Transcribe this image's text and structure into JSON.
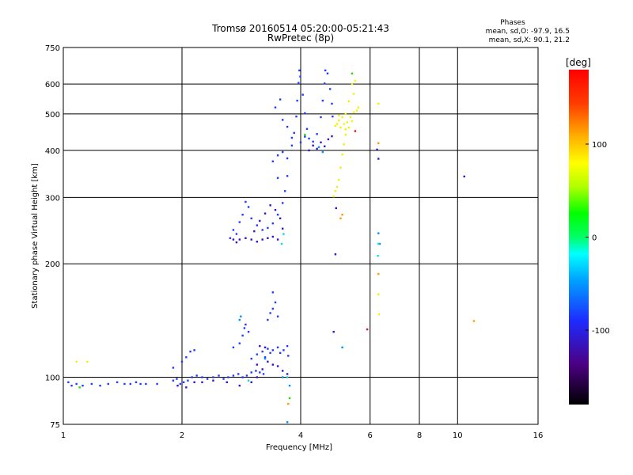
{
  "chart_data": {
    "type": "scatter",
    "title": "Tromsø 20160514 05:20:00-05:21:43",
    "subtitle": "RwPretec (8p)",
    "xlabel": "Frequency [MHz]",
    "ylabel": "Stationary phase Virtual Height [km]",
    "x_scale": "log",
    "y_scale": "log",
    "xlim": [
      1,
      16
    ],
    "ylim": [
      75,
      750
    ],
    "x_ticks": [
      1,
      2,
      4,
      6,
      8,
      10,
      16
    ],
    "x_tick_labels": [
      "1",
      "2",
      "4",
      "6",
      "8",
      "10",
      "16"
    ],
    "y_ticks": [
      75,
      100,
      200,
      300,
      400,
      500,
      600,
      750
    ],
    "y_tick_labels": [
      "75",
      "100",
      "200",
      "300",
      "400",
      "500",
      "600",
      "750"
    ],
    "grid": true,
    "stats": {
      "heading": "Phases",
      "line_o": "mean, sd,O:  -97.9,  16.5",
      "line_x": "mean, sd,X:   90.1,  21.2"
    },
    "colorbar": {
      "label": "[deg]",
      "range": [
        -180,
        180
      ],
      "ticks": [
        100,
        0,
        -100
      ],
      "tick_labels": [
        "100",
        "0",
        "-100"
      ]
    },
    "series": [
      {
        "phase": -100,
        "points": [
          [
            1.03,
            97
          ],
          [
            1.05,
            95
          ],
          [
            1.08,
            96
          ],
          [
            1.12,
            95
          ],
          [
            1.18,
            96
          ],
          [
            1.24,
            95
          ],
          [
            1.3,
            96
          ],
          [
            1.37,
            97
          ],
          [
            1.43,
            96
          ],
          [
            1.48,
            96
          ],
          [
            1.53,
            97
          ],
          [
            1.57,
            96
          ],
          [
            1.62,
            96
          ],
          [
            1.73,
            96
          ],
          [
            1.9,
            98
          ],
          [
            1.94,
            99
          ],
          [
            1.98,
            96
          ],
          [
            2.02,
            97
          ],
          [
            2.07,
            98
          ],
          [
            2.12,
            100
          ],
          [
            2.18,
            101
          ],
          [
            2.25,
            100
          ],
          [
            2.32,
            99
          ],
          [
            2.4,
            100
          ],
          [
            2.48,
            101
          ],
          [
            2.55,
            99
          ],
          [
            2.62,
            100
          ],
          [
            2.7,
            101
          ],
          [
            2.78,
            102
          ],
          [
            2.85,
            100
          ],
          [
            2.92,
            101
          ],
          [
            3.0,
            103
          ],
          [
            3.08,
            104
          ],
          [
            3.15,
            103
          ],
          [
            3.22,
            102
          ],
          [
            1.9,
            106
          ],
          [
            2.0,
            110
          ],
          [
            2.05,
            113
          ],
          [
            2.1,
            117
          ],
          [
            2.15,
            118
          ],
          [
            2.7,
            120
          ],
          [
            2.8,
            123
          ],
          [
            2.85,
            129
          ],
          [
            2.88,
            135
          ],
          [
            2.9,
            138
          ],
          [
            2.95,
            132
          ],
          [
            3.3,
            142
          ],
          [
            3.35,
            148
          ],
          [
            3.4,
            152
          ],
          [
            3.45,
            158
          ],
          [
            3.4,
            168
          ],
          [
            3.5,
            145
          ],
          [
            3.0,
            112
          ],
          [
            3.1,
            115
          ],
          [
            3.2,
            117
          ],
          [
            3.25,
            113
          ],
          [
            3.3,
            119
          ],
          [
            3.35,
            116
          ],
          [
            3.4,
            118
          ],
          [
            3.5,
            120
          ],
          [
            3.55,
            116
          ],
          [
            3.62,
            118
          ],
          [
            3.7,
            121
          ],
          [
            3.72,
            114
          ],
          [
            2.65,
            234
          ],
          [
            2.7,
            246
          ],
          [
            2.75,
            240
          ],
          [
            2.8,
            258
          ],
          [
            2.85,
            270
          ],
          [
            2.9,
            292
          ],
          [
            2.95,
            283
          ],
          [
            3.0,
            264
          ],
          [
            3.1,
            253
          ],
          [
            3.2,
            246
          ],
          [
            3.3,
            249
          ],
          [
            3.4,
            256
          ],
          [
            3.5,
            270
          ],
          [
            3.6,
            290
          ],
          [
            3.65,
            312
          ],
          [
            3.7,
            342
          ],
          [
            3.5,
            338
          ],
          [
            3.4,
            374
          ],
          [
            3.5,
            388
          ],
          [
            3.6,
            396
          ],
          [
            3.7,
            381
          ],
          [
            3.8,
            412
          ],
          [
            3.85,
            445
          ],
          [
            3.9,
            492
          ],
          [
            3.92,
            542
          ],
          [
            3.95,
            604
          ],
          [
            3.97,
            652
          ],
          [
            3.99,
            628
          ],
          [
            4.05,
            562
          ],
          [
            4.1,
            502
          ],
          [
            4.15,
            456
          ],
          [
            4.2,
            430
          ],
          [
            4.3,
            422
          ],
          [
            4.4,
            442
          ],
          [
            4.5,
            490
          ],
          [
            4.55,
            542
          ],
          [
            4.6,
            602
          ],
          [
            4.62,
            652
          ],
          [
            4.68,
            640
          ],
          [
            4.75,
            582
          ],
          [
            4.8,
            532
          ],
          [
            4.82,
            492
          ],
          [
            3.55,
            546
          ],
          [
            3.45,
            520
          ],
          [
            3.6,
            482
          ],
          [
            3.7,
            462
          ],
          [
            3.8,
            432
          ],
          [
            4.0,
            420
          ],
          [
            4.1,
            435
          ]
        ]
      },
      {
        "phase": -125,
        "points": [
          [
            1.95,
            95
          ],
          [
            2.05,
            94
          ],
          [
            2.15,
            97
          ],
          [
            2.25,
            97
          ],
          [
            2.4,
            98
          ],
          [
            2.6,
            97
          ],
          [
            2.8,
            95
          ],
          [
            3.0,
            97
          ],
          [
            3.1,
            100
          ],
          [
            3.2,
            105
          ],
          [
            3.3,
            110
          ],
          [
            3.4,
            108
          ],
          [
            3.5,
            107
          ],
          [
            3.6,
            104
          ],
          [
            3.7,
            102
          ],
          [
            3.1,
            108
          ],
          [
            3.15,
            121
          ],
          [
            3.25,
            120
          ],
          [
            2.7,
            232
          ],
          [
            2.75,
            228
          ],
          [
            2.8,
            232
          ],
          [
            2.9,
            234
          ],
          [
            3.0,
            232
          ],
          [
            3.1,
            229
          ],
          [
            3.2,
            232
          ],
          [
            3.3,
            234
          ],
          [
            3.4,
            236
          ],
          [
            3.5,
            232
          ],
          [
            3.05,
            244
          ],
          [
            3.15,
            260
          ],
          [
            3.25,
            272
          ],
          [
            3.35,
            286
          ],
          [
            3.45,
            278
          ],
          [
            3.55,
            264
          ],
          [
            3.6,
            248
          ],
          [
            4.2,
            400
          ],
          [
            4.3,
            412
          ],
          [
            4.4,
            404
          ],
          [
            4.5,
            420
          ],
          [
            4.6,
            410
          ],
          [
            4.7,
            428
          ],
          [
            4.8,
            436
          ],
          [
            4.85,
            132
          ],
          [
            4.9,
            212
          ],
          [
            4.92,
            281
          ],
          [
            6.25,
            402
          ],
          [
            6.3,
            380
          ],
          [
            10.4,
            341
          ]
        ]
      },
      {
        "phase": -60,
        "points": [
          [
            2.8,
            142
          ],
          [
            2.82,
            145
          ],
          [
            3.25,
            112
          ],
          [
            3.6,
            100
          ],
          [
            3.75,
            95
          ],
          [
            3.7,
            76
          ],
          [
            4.45,
            408
          ],
          [
            4.55,
            396
          ],
          [
            6.3,
            241
          ],
          [
            6.35,
            226
          ],
          [
            5.1,
            120
          ]
        ]
      },
      {
        "phase": -20,
        "points": [
          [
            2.95,
            98
          ],
          [
            3.62,
            240
          ],
          [
            3.58,
            226
          ],
          [
            6.3,
            226
          ],
          [
            6.28,
            210
          ],
          [
            3.7,
            100
          ]
        ]
      },
      {
        "phase": 20,
        "points": [
          [
            1.1,
            94
          ],
          [
            5.4,
            640
          ],
          [
            3.75,
            88
          ],
          [
            4.1,
            440
          ]
        ]
      },
      {
        "phase": 90,
        "points": [
          [
            5.4,
            600
          ],
          [
            5.5,
            612
          ],
          [
            5.45,
            565
          ],
          [
            5.3,
            540
          ],
          [
            5.2,
            500
          ],
          [
            5.1,
            490
          ],
          [
            5.0,
            480
          ],
          [
            4.95,
            470
          ],
          [
            4.9,
            465
          ],
          [
            5.05,
            460
          ],
          [
            5.15,
            470
          ],
          [
            5.25,
            475
          ],
          [
            5.35,
            490
          ],
          [
            5.45,
            505
          ],
          [
            5.55,
            510
          ],
          [
            5.6,
            520
          ],
          [
            5.0,
            495
          ],
          [
            5.2,
            455
          ],
          [
            5.3,
            460
          ],
          [
            5.4,
            478
          ],
          [
            4.85,
            302
          ],
          [
            4.9,
            312
          ],
          [
            4.95,
            320
          ],
          [
            5.0,
            334
          ],
          [
            5.05,
            360
          ],
          [
            5.1,
            390
          ],
          [
            5.15,
            415
          ],
          [
            5.2,
            440
          ],
          [
            6.3,
            532
          ],
          [
            1.08,
            110
          ],
          [
            1.15,
            110
          ],
          [
            6.32,
            147
          ],
          [
            6.3,
            166
          ]
        ]
      },
      {
        "phase": 130,
        "points": [
          [
            5.05,
            264
          ],
          [
            5.1,
            270
          ],
          [
            6.3,
            188
          ],
          [
            6.3,
            418
          ],
          [
            3.72,
            85
          ],
          [
            11.0,
            141
          ]
        ]
      },
      {
        "phase": 165,
        "points": [
          [
            5.9,
            134
          ],
          [
            5.5,
            450
          ]
        ]
      }
    ]
  }
}
